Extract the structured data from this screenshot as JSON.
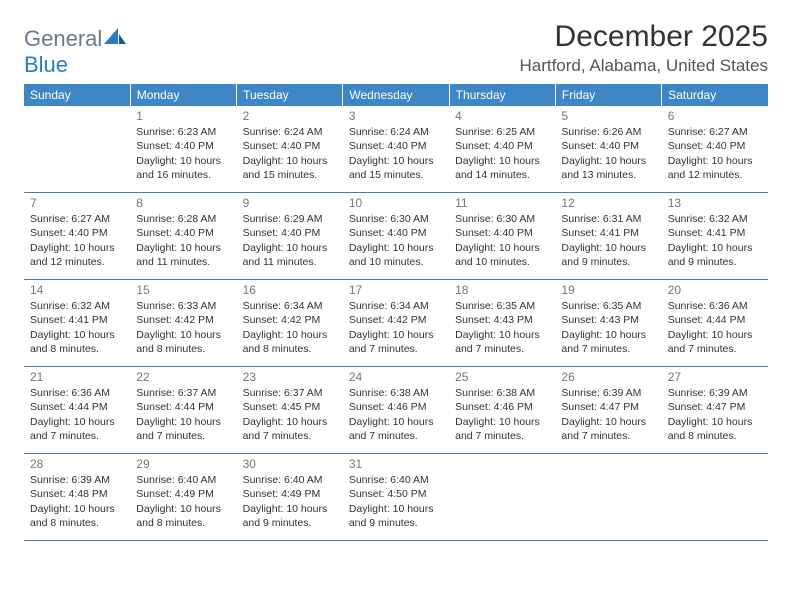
{
  "logo": {
    "text1": "General",
    "text2": "Blue"
  },
  "title": "December 2025",
  "location": "Hartford, Alabama, United States",
  "colors": {
    "header_bg": "#3f86c6",
    "header_fg": "#ffffff",
    "border": "#4a7aa8",
    "logo_gray": "#6b7a8a",
    "logo_blue": "#2a7bbf",
    "text": "#333333",
    "daynum": "#777777"
  },
  "weekdays": [
    "Sunday",
    "Monday",
    "Tuesday",
    "Wednesday",
    "Thursday",
    "Friday",
    "Saturday"
  ],
  "weeks": [
    [
      {
        "day": "",
        "sunrise": "",
        "sunset": "",
        "daylight1": "",
        "daylight2": ""
      },
      {
        "day": "1",
        "sunrise": "Sunrise: 6:23 AM",
        "sunset": "Sunset: 4:40 PM",
        "daylight1": "Daylight: 10 hours",
        "daylight2": "and 16 minutes."
      },
      {
        "day": "2",
        "sunrise": "Sunrise: 6:24 AM",
        "sunset": "Sunset: 4:40 PM",
        "daylight1": "Daylight: 10 hours",
        "daylight2": "and 15 minutes."
      },
      {
        "day": "3",
        "sunrise": "Sunrise: 6:24 AM",
        "sunset": "Sunset: 4:40 PM",
        "daylight1": "Daylight: 10 hours",
        "daylight2": "and 15 minutes."
      },
      {
        "day": "4",
        "sunrise": "Sunrise: 6:25 AM",
        "sunset": "Sunset: 4:40 PM",
        "daylight1": "Daylight: 10 hours",
        "daylight2": "and 14 minutes."
      },
      {
        "day": "5",
        "sunrise": "Sunrise: 6:26 AM",
        "sunset": "Sunset: 4:40 PM",
        "daylight1": "Daylight: 10 hours",
        "daylight2": "and 13 minutes."
      },
      {
        "day": "6",
        "sunrise": "Sunrise: 6:27 AM",
        "sunset": "Sunset: 4:40 PM",
        "daylight1": "Daylight: 10 hours",
        "daylight2": "and 12 minutes."
      }
    ],
    [
      {
        "day": "7",
        "sunrise": "Sunrise: 6:27 AM",
        "sunset": "Sunset: 4:40 PM",
        "daylight1": "Daylight: 10 hours",
        "daylight2": "and 12 minutes."
      },
      {
        "day": "8",
        "sunrise": "Sunrise: 6:28 AM",
        "sunset": "Sunset: 4:40 PM",
        "daylight1": "Daylight: 10 hours",
        "daylight2": "and 11 minutes."
      },
      {
        "day": "9",
        "sunrise": "Sunrise: 6:29 AM",
        "sunset": "Sunset: 4:40 PM",
        "daylight1": "Daylight: 10 hours",
        "daylight2": "and 11 minutes."
      },
      {
        "day": "10",
        "sunrise": "Sunrise: 6:30 AM",
        "sunset": "Sunset: 4:40 PM",
        "daylight1": "Daylight: 10 hours",
        "daylight2": "and 10 minutes."
      },
      {
        "day": "11",
        "sunrise": "Sunrise: 6:30 AM",
        "sunset": "Sunset: 4:40 PM",
        "daylight1": "Daylight: 10 hours",
        "daylight2": "and 10 minutes."
      },
      {
        "day": "12",
        "sunrise": "Sunrise: 6:31 AM",
        "sunset": "Sunset: 4:41 PM",
        "daylight1": "Daylight: 10 hours",
        "daylight2": "and 9 minutes."
      },
      {
        "day": "13",
        "sunrise": "Sunrise: 6:32 AM",
        "sunset": "Sunset: 4:41 PM",
        "daylight1": "Daylight: 10 hours",
        "daylight2": "and 9 minutes."
      }
    ],
    [
      {
        "day": "14",
        "sunrise": "Sunrise: 6:32 AM",
        "sunset": "Sunset: 4:41 PM",
        "daylight1": "Daylight: 10 hours",
        "daylight2": "and 8 minutes."
      },
      {
        "day": "15",
        "sunrise": "Sunrise: 6:33 AM",
        "sunset": "Sunset: 4:42 PM",
        "daylight1": "Daylight: 10 hours",
        "daylight2": "and 8 minutes."
      },
      {
        "day": "16",
        "sunrise": "Sunrise: 6:34 AM",
        "sunset": "Sunset: 4:42 PM",
        "daylight1": "Daylight: 10 hours",
        "daylight2": "and 8 minutes."
      },
      {
        "day": "17",
        "sunrise": "Sunrise: 6:34 AM",
        "sunset": "Sunset: 4:42 PM",
        "daylight1": "Daylight: 10 hours",
        "daylight2": "and 7 minutes."
      },
      {
        "day": "18",
        "sunrise": "Sunrise: 6:35 AM",
        "sunset": "Sunset: 4:43 PM",
        "daylight1": "Daylight: 10 hours",
        "daylight2": "and 7 minutes."
      },
      {
        "day": "19",
        "sunrise": "Sunrise: 6:35 AM",
        "sunset": "Sunset: 4:43 PM",
        "daylight1": "Daylight: 10 hours",
        "daylight2": "and 7 minutes."
      },
      {
        "day": "20",
        "sunrise": "Sunrise: 6:36 AM",
        "sunset": "Sunset: 4:44 PM",
        "daylight1": "Daylight: 10 hours",
        "daylight2": "and 7 minutes."
      }
    ],
    [
      {
        "day": "21",
        "sunrise": "Sunrise: 6:36 AM",
        "sunset": "Sunset: 4:44 PM",
        "daylight1": "Daylight: 10 hours",
        "daylight2": "and 7 minutes."
      },
      {
        "day": "22",
        "sunrise": "Sunrise: 6:37 AM",
        "sunset": "Sunset: 4:44 PM",
        "daylight1": "Daylight: 10 hours",
        "daylight2": "and 7 minutes."
      },
      {
        "day": "23",
        "sunrise": "Sunrise: 6:37 AM",
        "sunset": "Sunset: 4:45 PM",
        "daylight1": "Daylight: 10 hours",
        "daylight2": "and 7 minutes."
      },
      {
        "day": "24",
        "sunrise": "Sunrise: 6:38 AM",
        "sunset": "Sunset: 4:46 PM",
        "daylight1": "Daylight: 10 hours",
        "daylight2": "and 7 minutes."
      },
      {
        "day": "25",
        "sunrise": "Sunrise: 6:38 AM",
        "sunset": "Sunset: 4:46 PM",
        "daylight1": "Daylight: 10 hours",
        "daylight2": "and 7 minutes."
      },
      {
        "day": "26",
        "sunrise": "Sunrise: 6:39 AM",
        "sunset": "Sunset: 4:47 PM",
        "daylight1": "Daylight: 10 hours",
        "daylight2": "and 7 minutes."
      },
      {
        "day": "27",
        "sunrise": "Sunrise: 6:39 AM",
        "sunset": "Sunset: 4:47 PM",
        "daylight1": "Daylight: 10 hours",
        "daylight2": "and 8 minutes."
      }
    ],
    [
      {
        "day": "28",
        "sunrise": "Sunrise: 6:39 AM",
        "sunset": "Sunset: 4:48 PM",
        "daylight1": "Daylight: 10 hours",
        "daylight2": "and 8 minutes."
      },
      {
        "day": "29",
        "sunrise": "Sunrise: 6:40 AM",
        "sunset": "Sunset: 4:49 PM",
        "daylight1": "Daylight: 10 hours",
        "daylight2": "and 8 minutes."
      },
      {
        "day": "30",
        "sunrise": "Sunrise: 6:40 AM",
        "sunset": "Sunset: 4:49 PM",
        "daylight1": "Daylight: 10 hours",
        "daylight2": "and 9 minutes."
      },
      {
        "day": "31",
        "sunrise": "Sunrise: 6:40 AM",
        "sunset": "Sunset: 4:50 PM",
        "daylight1": "Daylight: 10 hours",
        "daylight2": "and 9 minutes."
      },
      {
        "day": "",
        "sunrise": "",
        "sunset": "",
        "daylight1": "",
        "daylight2": ""
      },
      {
        "day": "",
        "sunrise": "",
        "sunset": "",
        "daylight1": "",
        "daylight2": ""
      },
      {
        "day": "",
        "sunrise": "",
        "sunset": "",
        "daylight1": "",
        "daylight2": ""
      }
    ]
  ]
}
